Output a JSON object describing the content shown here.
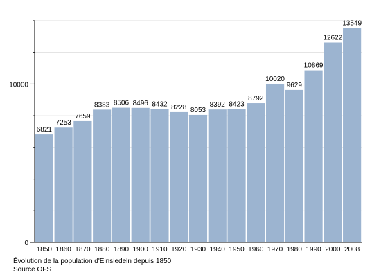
{
  "chart_data": {
    "type": "bar",
    "categories": [
      "1850",
      "1860",
      "1870",
      "1880",
      "1890",
      "1900",
      "1910",
      "1920",
      "1930",
      "1940",
      "1950",
      "1960",
      "1970",
      "1980",
      "1990",
      "2000",
      "2008"
    ],
    "values": [
      6821,
      7253,
      7659,
      8383,
      8506,
      8496,
      8432,
      8228,
      8053,
      8392,
      8423,
      8792,
      10020,
      9629,
      10869,
      12622,
      13549
    ],
    "ylim": [
      0,
      14000
    ],
    "yticks": [
      0,
      10000
    ],
    "grid": "horizontal",
    "legend": "none",
    "bar_color": "#9cb4d0"
  },
  "caption": {
    "line1": "Évolution de la population d'Einsiedeln depuis 1850",
    "line2": "Source OFS"
  }
}
